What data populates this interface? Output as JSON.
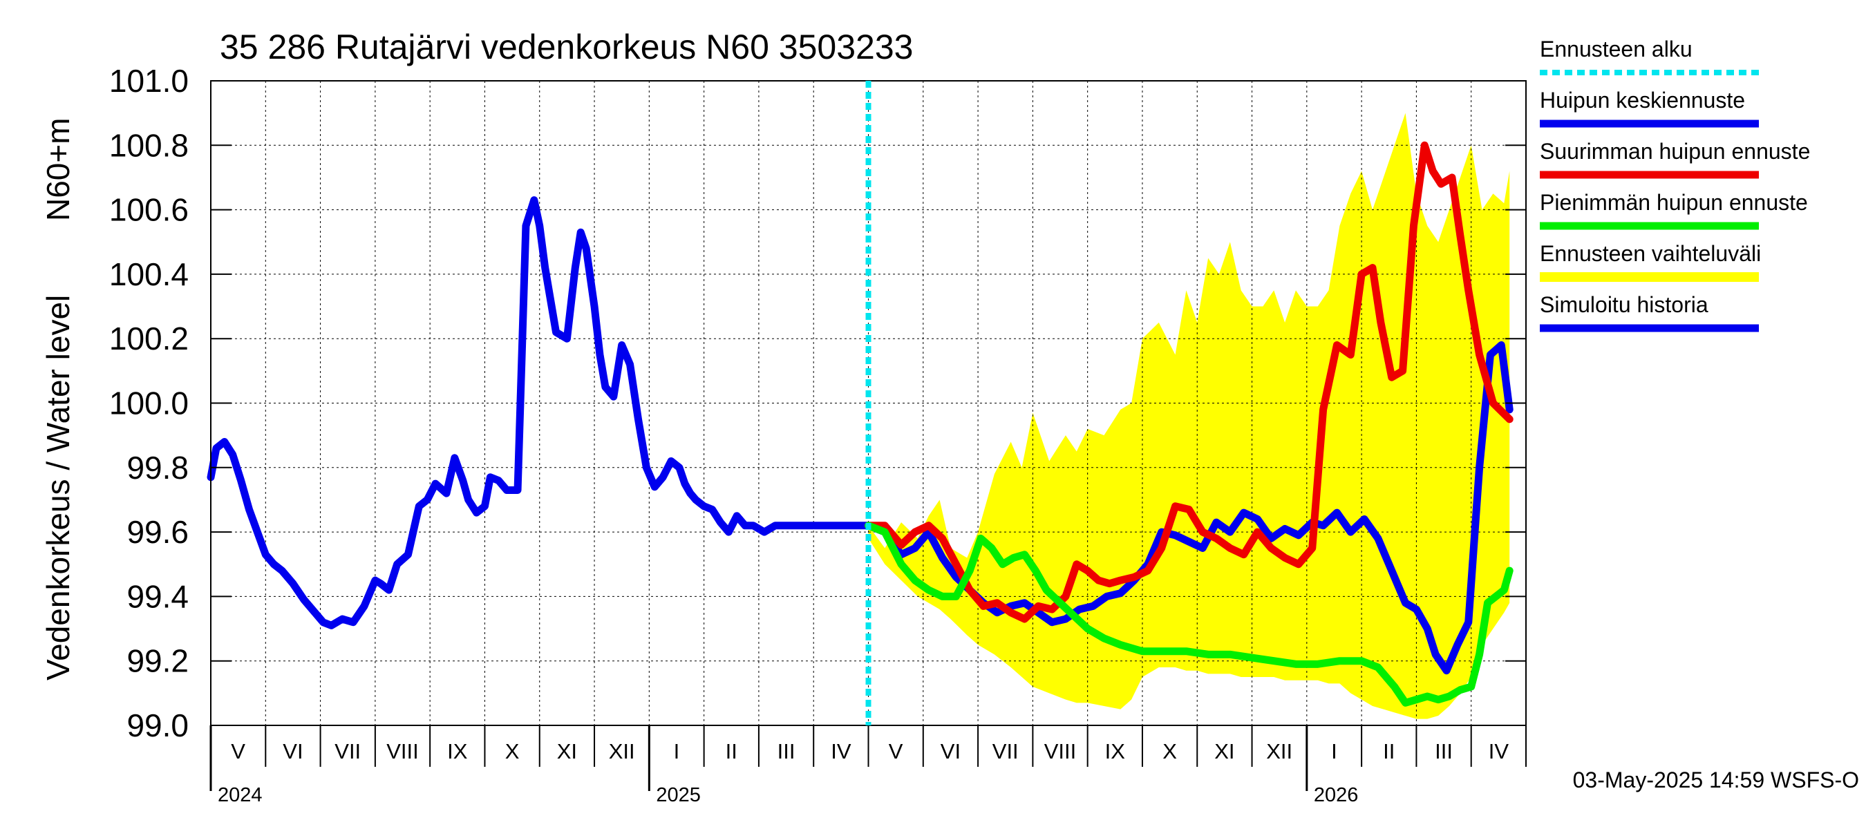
{
  "chart_data": {
    "type": "line",
    "title": "35 286 Rutajärvi vedenkorkeus N60 3503233",
    "ylabel_top": "N60+m",
    "ylabel_bottom": "Vedenkorkeus / Water level",
    "ylim": [
      99.0,
      101.0
    ],
    "yticks": [
      "99.0",
      "99.2",
      "99.4",
      "99.6",
      "99.8",
      "100.0",
      "100.2",
      "100.4",
      "100.6",
      "100.8",
      "101.0"
    ],
    "months": [
      "V",
      "VI",
      "VII",
      "VIII",
      "IX",
      "X",
      "XI",
      "XII",
      "I",
      "II",
      "III",
      "IV",
      "V",
      "VI",
      "VII",
      "VIII",
      "IX",
      "X",
      "XI",
      "XII",
      "I",
      "II",
      "III",
      "IV"
    ],
    "years": [
      {
        "label": "2024",
        "month_index": 0
      },
      {
        "label": "2025",
        "month_index": 8
      },
      {
        "label": "2026",
        "month_index": 20
      }
    ],
    "forecast_start_month": 12,
    "legend": [
      {
        "label": "Ennusteen alku",
        "color": "#00e5ee",
        "style": "dashed"
      },
      {
        "label": "Huipun keskiennuste",
        "color": "#0000ee",
        "style": "solid"
      },
      {
        "label": "Suurimman huipun ennuste",
        "color": "#ee0000",
        "style": "solid"
      },
      {
        "label": "Pienimmän huipun ennuste",
        "color": "#00ee00",
        "style": "solid"
      },
      {
        "label": "Ennusteen vaihteluväli",
        "color": "#ffff00",
        "style": "band"
      },
      {
        "label": "Simuloitu historia",
        "color": "#0000ee",
        "style": "solid"
      }
    ],
    "footer": "03-May-2025 14:59 WSFS-O",
    "series": [
      {
        "name": "Simuloitu historia",
        "color": "#0000ee",
        "x": [
          0,
          0.1,
          0.25,
          0.4,
          0.55,
          0.7,
          0.85,
          1.0,
          1.15,
          1.3,
          1.5,
          1.7,
          1.9,
          2.05,
          2.2,
          2.4,
          2.6,
          2.8,
          3.0,
          3.1,
          3.25,
          3.4,
          3.6,
          3.8,
          3.95,
          4.1,
          4.3,
          4.45,
          4.6,
          4.7,
          4.85,
          5.0,
          5.1,
          5.25,
          5.4,
          5.6,
          5.75,
          5.9,
          6.0,
          6.1,
          6.3,
          6.5,
          6.65,
          6.75,
          6.85,
          7.0,
          7.1,
          7.2,
          7.35,
          7.5,
          7.65,
          7.8,
          7.95,
          8.1,
          8.25,
          8.4,
          8.55,
          8.65,
          8.75,
          8.85,
          9.0,
          9.15,
          9.3,
          9.45,
          9.6,
          9.75,
          9.9,
          10.1,
          10.3,
          10.5,
          10.7,
          10.9,
          11.1,
          11.3,
          11.5,
          11.7,
          11.9,
          12.0
        ],
        "y": [
          99.77,
          99.86,
          99.88,
          99.84,
          99.76,
          99.67,
          99.6,
          99.53,
          99.5,
          99.48,
          99.44,
          99.39,
          99.35,
          99.32,
          99.31,
          99.33,
          99.32,
          99.37,
          99.45,
          99.44,
          99.42,
          99.5,
          99.53,
          99.68,
          99.7,
          99.75,
          99.72,
          99.83,
          99.76,
          99.7,
          99.66,
          99.68,
          99.77,
          99.76,
          99.73,
          99.73,
          100.55,
          100.63,
          100.55,
          100.42,
          100.22,
          100.2,
          100.42,
          100.53,
          100.48,
          100.3,
          100.15,
          100.05,
          100.02,
          100.18,
          100.12,
          99.95,
          99.8,
          99.74,
          99.77,
          99.82,
          99.8,
          99.75,
          99.72,
          99.7,
          99.68,
          99.67,
          99.63,
          99.6,
          99.65,
          99.62,
          99.62,
          99.6,
          99.62,
          99.62,
          99.62,
          99.62,
          99.62,
          99.62,
          99.62,
          99.62,
          99.62,
          99.62
        ]
      },
      {
        "name": "Huipun keskiennuste",
        "color": "#0000ee",
        "x": [
          12.0,
          12.3,
          12.6,
          12.85,
          13.1,
          13.35,
          13.6,
          13.85,
          14.1,
          14.35,
          14.6,
          14.85,
          15.1,
          15.35,
          15.6,
          15.85,
          16.1,
          16.35,
          16.6,
          16.85,
          17.1,
          17.35,
          17.6,
          17.85,
          18.1,
          18.35,
          18.6,
          18.85,
          19.1,
          19.35,
          19.6,
          19.85,
          20.1,
          20.3,
          20.55,
          20.8,
          21.05,
          21.3,
          21.55,
          21.8,
          22.0,
          22.2,
          22.35,
          22.55,
          22.75,
          22.95,
          23.15,
          23.35,
          23.55,
          23.7
        ],
        "y": [
          99.62,
          99.6,
          99.53,
          99.55,
          99.6,
          99.52,
          99.46,
          99.42,
          99.38,
          99.35,
          99.37,
          99.38,
          99.35,
          99.32,
          99.33,
          99.36,
          99.37,
          99.4,
          99.41,
          99.45,
          99.5,
          99.6,
          99.59,
          99.57,
          99.55,
          99.63,
          99.6,
          99.66,
          99.64,
          99.58,
          99.61,
          99.59,
          99.63,
          99.62,
          99.66,
          99.6,
          99.64,
          99.58,
          99.48,
          99.38,
          99.36,
          99.3,
          99.22,
          99.17,
          99.25,
          99.32,
          99.8,
          100.15,
          100.18,
          99.98
        ]
      },
      {
        "name": "Suurimman huipun ennuste",
        "color": "#ee0000",
        "x": [
          12.0,
          12.3,
          12.6,
          12.85,
          13.1,
          13.35,
          13.6,
          13.85,
          14.1,
          14.35,
          14.6,
          14.85,
          15.1,
          15.35,
          15.6,
          15.8,
          16.0,
          16.2,
          16.4,
          16.6,
          16.85,
          17.1,
          17.35,
          17.6,
          17.85,
          18.1,
          18.35,
          18.6,
          18.85,
          19.1,
          19.35,
          19.6,
          19.85,
          20.1,
          20.3,
          20.55,
          20.8,
          21.0,
          21.2,
          21.35,
          21.55,
          21.75,
          21.95,
          22.15,
          22.3,
          22.45,
          22.65,
          22.8,
          22.95,
          23.15,
          23.4,
          23.7
        ],
        "y": [
          99.62,
          99.62,
          99.56,
          99.6,
          99.62,
          99.58,
          99.5,
          99.42,
          99.37,
          99.38,
          99.35,
          99.33,
          99.37,
          99.36,
          99.4,
          99.5,
          99.48,
          99.45,
          99.44,
          99.45,
          99.46,
          99.48,
          99.55,
          99.68,
          99.67,
          99.6,
          99.58,
          99.55,
          99.53,
          99.6,
          99.55,
          99.52,
          99.5,
          99.55,
          99.98,
          100.18,
          100.15,
          100.4,
          100.42,
          100.25,
          100.08,
          100.1,
          100.55,
          100.8,
          100.72,
          100.68,
          100.7,
          100.52,
          100.35,
          100.15,
          100.0,
          99.95
        ]
      },
      {
        "name": "Pienimmän huipun ennuste",
        "color": "#00ee00",
        "x": [
          12.0,
          12.3,
          12.6,
          12.85,
          13.1,
          13.35,
          13.6,
          13.85,
          14.05,
          14.25,
          14.45,
          14.65,
          14.85,
          15.05,
          15.25,
          15.5,
          15.75,
          16.0,
          16.3,
          16.6,
          17.0,
          17.4,
          17.8,
          18.2,
          18.6,
          19.0,
          19.4,
          19.8,
          20.2,
          20.6,
          21.0,
          21.3,
          21.6,
          21.8,
          22.0,
          22.2,
          22.4,
          22.6,
          22.8,
          23.0,
          23.15,
          23.3,
          23.45,
          23.6,
          23.7
        ],
        "y": [
          99.62,
          99.6,
          99.5,
          99.45,
          99.42,
          99.4,
          99.4,
          99.48,
          99.58,
          99.55,
          99.5,
          99.52,
          99.53,
          99.48,
          99.42,
          99.38,
          99.34,
          99.3,
          99.27,
          99.25,
          99.23,
          99.23,
          99.23,
          99.22,
          99.22,
          99.21,
          99.2,
          99.19,
          99.19,
          99.2,
          99.2,
          99.18,
          99.12,
          99.07,
          99.08,
          99.09,
          99.08,
          99.09,
          99.11,
          99.12,
          99.22,
          99.38,
          99.4,
          99.42,
          99.48
        ]
      }
    ],
    "band": {
      "name": "Ennusteen vaihteluväli",
      "color": "#ffff00",
      "x": [
        12.0,
        12.3,
        12.6,
        12.9,
        13.1,
        13.3,
        13.5,
        13.8,
        14.0,
        14.3,
        14.6,
        14.8,
        15.0,
        15.3,
        15.6,
        15.8,
        16.0,
        16.3,
        16.6,
        16.8,
        17.0,
        17.3,
        17.6,
        17.8,
        18.0,
        18.2,
        18.4,
        18.6,
        18.8,
        19.0,
        19.2,
        19.4,
        19.6,
        19.8,
        20.0,
        20.2,
        20.4,
        20.6,
        20.8,
        21.0,
        21.2,
        21.4,
        21.6,
        21.8,
        22.0,
        22.2,
        22.4,
        22.6,
        22.8,
        23.0,
        23.2,
        23.4,
        23.6,
        23.7
      ],
      "upper": [
        99.62,
        99.55,
        99.63,
        99.58,
        99.65,
        99.7,
        99.55,
        99.52,
        99.6,
        99.78,
        99.88,
        99.8,
        99.97,
        99.82,
        99.9,
        99.85,
        99.92,
        99.9,
        99.98,
        100.0,
        100.2,
        100.25,
        100.15,
        100.35,
        100.25,
        100.45,
        100.4,
        100.5,
        100.35,
        100.3,
        100.3,
        100.35,
        100.25,
        100.35,
        100.3,
        100.3,
        100.35,
        100.55,
        100.65,
        100.72,
        100.6,
        100.7,
        100.8,
        100.9,
        100.65,
        100.55,
        100.5,
        100.6,
        100.7,
        100.8,
        100.6,
        100.65,
        100.62,
        100.72
      ],
      "lower": [
        99.58,
        99.5,
        99.45,
        99.4,
        99.38,
        99.36,
        99.33,
        99.28,
        99.25,
        99.22,
        99.18,
        99.15,
        99.12,
        99.1,
        99.08,
        99.07,
        99.07,
        99.06,
        99.05,
        99.08,
        99.15,
        99.18,
        99.18,
        99.17,
        99.17,
        99.16,
        99.16,
        99.16,
        99.15,
        99.15,
        99.15,
        99.15,
        99.14,
        99.14,
        99.14,
        99.14,
        99.13,
        99.13,
        99.1,
        99.08,
        99.06,
        99.05,
        99.04,
        99.03,
        99.02,
        99.02,
        99.03,
        99.06,
        99.1,
        99.15,
        99.25,
        99.3,
        99.35,
        99.38
      ]
    }
  }
}
